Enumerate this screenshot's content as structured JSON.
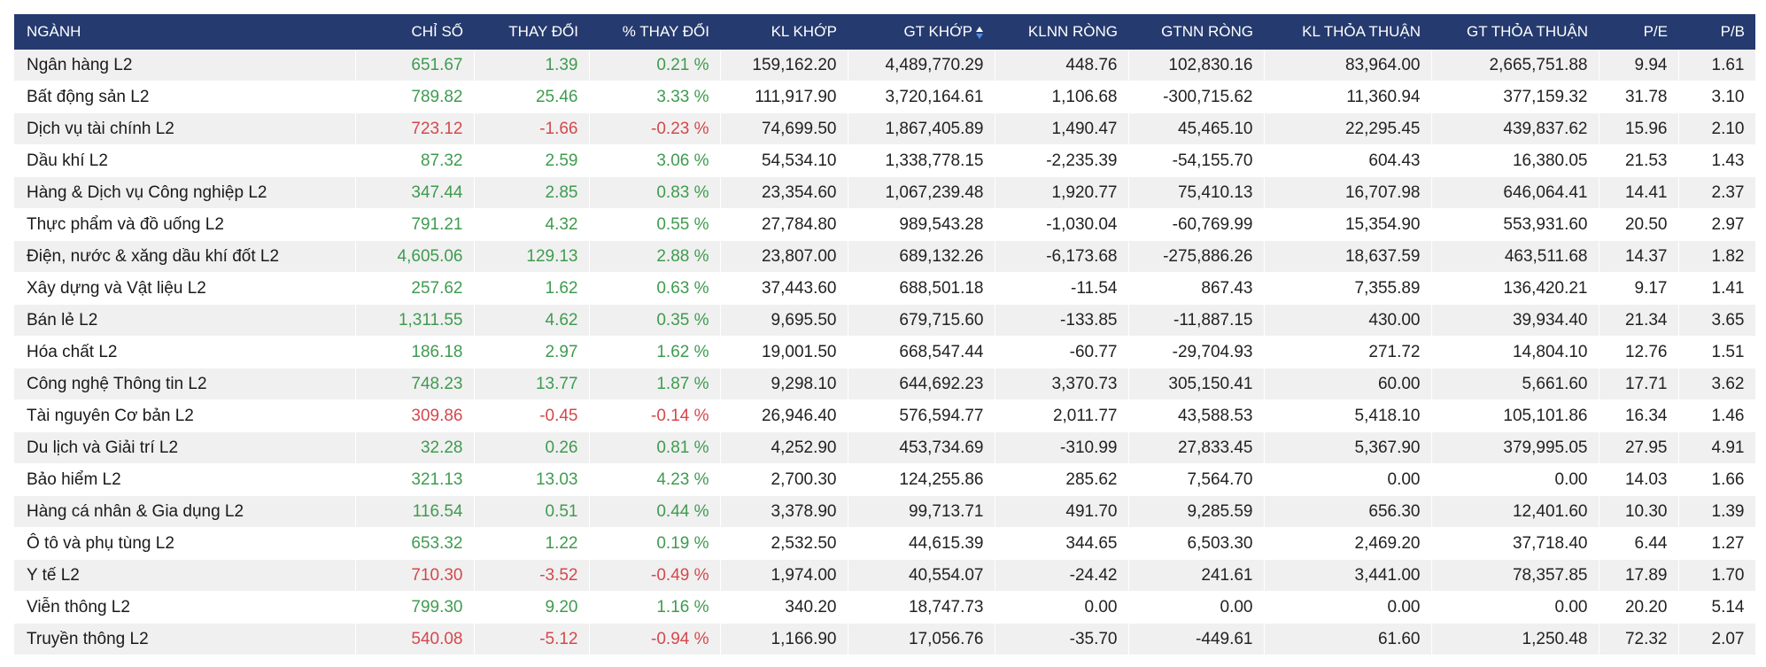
{
  "colors": {
    "header_bg": "#253a6e",
    "header_text": "#ffffff",
    "up": "#3f9b4f",
    "down": "#d4484c",
    "row_alt": "#f0f0f0",
    "sort_icon_active": "#4e8ee8"
  },
  "table": {
    "headers": {
      "name": "NGÀNH",
      "index": "CHỈ SỐ",
      "change": "THAY ĐỔI",
      "pct_change": "% THAY ĐỔI",
      "kl_khop": "KL KHỚP",
      "gt_khop": "GT KHỚP",
      "klnn_rong": "KLNN RÒNG",
      "gtnn_rong": "GTNN RÒNG",
      "kl_thoa_thuan": "KL THỎA THUẬN",
      "gt_thoa_thuan": "GT THỎA THUẬN",
      "pe": "P/E",
      "pb": "P/B"
    },
    "sort_icon": "sort-updown-icon",
    "rows": [
      {
        "name": "Ngân hàng L2",
        "trend": "up",
        "index": "651.67",
        "change": "1.39",
        "pct": "0.21 %",
        "kl_khop": "159,162.20",
        "gt_khop": "4,489,770.29",
        "klnn": "448.76",
        "gtnn": "102,830.16",
        "kl_tt": "83,964.00",
        "gt_tt": "2,665,751.88",
        "pe": "9.94",
        "pb": "1.61"
      },
      {
        "name": "Bất động sản L2",
        "trend": "up",
        "index": "789.82",
        "change": "25.46",
        "pct": "3.33 %",
        "kl_khop": "111,917.90",
        "gt_khop": "3,720,164.61",
        "klnn": "1,106.68",
        "gtnn": "-300,715.62",
        "kl_tt": "11,360.94",
        "gt_tt": "377,159.32",
        "pe": "31.78",
        "pb": "3.10"
      },
      {
        "name": "Dịch vụ tài chính L2",
        "trend": "down",
        "index": "723.12",
        "change": "-1.66",
        "pct": "-0.23 %",
        "kl_khop": "74,699.50",
        "gt_khop": "1,867,405.89",
        "klnn": "1,490.47",
        "gtnn": "45,465.10",
        "kl_tt": "22,295.45",
        "gt_tt": "439,837.62",
        "pe": "15.96",
        "pb": "2.10"
      },
      {
        "name": "Dầu khí L2",
        "trend": "up",
        "index": "87.32",
        "change": "2.59",
        "pct": "3.06 %",
        "kl_khop": "54,534.10",
        "gt_khop": "1,338,778.15",
        "klnn": "-2,235.39",
        "gtnn": "-54,155.70",
        "kl_tt": "604.43",
        "gt_tt": "16,380.05",
        "pe": "21.53",
        "pb": "1.43"
      },
      {
        "name": "Hàng & Dịch vụ Công nghiệp L2",
        "trend": "up",
        "index": "347.44",
        "change": "2.85",
        "pct": "0.83 %",
        "kl_khop": "23,354.60",
        "gt_khop": "1,067,239.48",
        "klnn": "1,920.77",
        "gtnn": "75,410.13",
        "kl_tt": "16,707.98",
        "gt_tt": "646,064.41",
        "pe": "14.41",
        "pb": "2.37"
      },
      {
        "name": "Thực phẩm và đồ uống L2",
        "trend": "up",
        "index": "791.21",
        "change": "4.32",
        "pct": "0.55 %",
        "kl_khop": "27,784.80",
        "gt_khop": "989,543.28",
        "klnn": "-1,030.04",
        "gtnn": "-60,769.99",
        "kl_tt": "15,354.90",
        "gt_tt": "553,931.60",
        "pe": "20.50",
        "pb": "2.97"
      },
      {
        "name": "Điện, nước & xăng dầu khí đốt L2",
        "trend": "up",
        "index": "4,605.06",
        "change": "129.13",
        "pct": "2.88 %",
        "kl_khop": "23,807.00",
        "gt_khop": "689,132.26",
        "klnn": "-6,173.68",
        "gtnn": "-275,886.26",
        "kl_tt": "18,637.59",
        "gt_tt": "463,511.68",
        "pe": "14.37",
        "pb": "1.82"
      },
      {
        "name": "Xây dựng và Vật liệu L2",
        "trend": "up",
        "index": "257.62",
        "change": "1.62",
        "pct": "0.63 %",
        "kl_khop": "37,443.60",
        "gt_khop": "688,501.18",
        "klnn": "-11.54",
        "gtnn": "867.43",
        "kl_tt": "7,355.89",
        "gt_tt": "136,420.21",
        "pe": "9.17",
        "pb": "1.41"
      },
      {
        "name": "Bán lẻ L2",
        "trend": "up",
        "index": "1,311.55",
        "change": "4.62",
        "pct": "0.35 %",
        "kl_khop": "9,695.50",
        "gt_khop": "679,715.60",
        "klnn": "-133.85",
        "gtnn": "-11,887.15",
        "kl_tt": "430.00",
        "gt_tt": "39,934.40",
        "pe": "21.34",
        "pb": "3.65"
      },
      {
        "name": "Hóa chất L2",
        "trend": "up",
        "index": "186.18",
        "change": "2.97",
        "pct": "1.62 %",
        "kl_khop": "19,001.50",
        "gt_khop": "668,547.44",
        "klnn": "-60.77",
        "gtnn": "-29,704.93",
        "kl_tt": "271.72",
        "gt_tt": "14,804.10",
        "pe": "12.76",
        "pb": "1.51"
      },
      {
        "name": "Công nghệ Thông tin L2",
        "trend": "up",
        "index": "748.23",
        "change": "13.77",
        "pct": "1.87 %",
        "kl_khop": "9,298.10",
        "gt_khop": "644,692.23",
        "klnn": "3,370.73",
        "gtnn": "305,150.41",
        "kl_tt": "60.00",
        "gt_tt": "5,661.60",
        "pe": "17.71",
        "pb": "3.62"
      },
      {
        "name": "Tài nguyên Cơ bản L2",
        "trend": "down",
        "index": "309.86",
        "change": "-0.45",
        "pct": "-0.14 %",
        "kl_khop": "26,946.40",
        "gt_khop": "576,594.77",
        "klnn": "2,011.77",
        "gtnn": "43,588.53",
        "kl_tt": "5,418.10",
        "gt_tt": "105,101.86",
        "pe": "16.34",
        "pb": "1.46"
      },
      {
        "name": "Du lịch và Giải trí L2",
        "trend": "up",
        "index": "32.28",
        "change": "0.26",
        "pct": "0.81 %",
        "kl_khop": "4,252.90",
        "gt_khop": "453,734.69",
        "klnn": "-310.99",
        "gtnn": "27,833.45",
        "kl_tt": "5,367.90",
        "gt_tt": "379,995.05",
        "pe": "27.95",
        "pb": "4.91"
      },
      {
        "name": "Bảo hiểm L2",
        "trend": "up",
        "index": "321.13",
        "change": "13.03",
        "pct": "4.23 %",
        "kl_khop": "2,700.30",
        "gt_khop": "124,255.86",
        "klnn": "285.62",
        "gtnn": "7,564.70",
        "kl_tt": "0.00",
        "gt_tt": "0.00",
        "pe": "14.03",
        "pb": "1.66"
      },
      {
        "name": "Hàng cá nhân & Gia dụng L2",
        "trend": "up",
        "index": "116.54",
        "change": "0.51",
        "pct": "0.44 %",
        "kl_khop": "3,378.90",
        "gt_khop": "99,713.71",
        "klnn": "491.70",
        "gtnn": "9,285.59",
        "kl_tt": "656.30",
        "gt_tt": "12,401.60",
        "pe": "10.30",
        "pb": "1.39"
      },
      {
        "name": "Ô tô và phụ tùng L2",
        "trend": "up",
        "index": "653.32",
        "change": "1.22",
        "pct": "0.19 %",
        "kl_khop": "2,532.50",
        "gt_khop": "44,615.39",
        "klnn": "344.65",
        "gtnn": "6,503.30",
        "kl_tt": "2,469.20",
        "gt_tt": "37,718.40",
        "pe": "6.44",
        "pb": "1.27"
      },
      {
        "name": "Y tế L2",
        "trend": "down",
        "index": "710.30",
        "change": "-3.52",
        "pct": "-0.49 %",
        "kl_khop": "1,974.00",
        "gt_khop": "40,554.07",
        "klnn": "-24.42",
        "gtnn": "241.61",
        "kl_tt": "3,441.00",
        "gt_tt": "78,357.85",
        "pe": "17.89",
        "pb": "1.70"
      },
      {
        "name": "Viễn thông L2",
        "trend": "up",
        "index": "799.30",
        "change": "9.20",
        "pct": "1.16 %",
        "kl_khop": "340.20",
        "gt_khop": "18,747.73",
        "klnn": "0.00",
        "gtnn": "0.00",
        "kl_tt": "0.00",
        "gt_tt": "0.00",
        "pe": "20.20",
        "pb": "5.14"
      },
      {
        "name": "Truyền thông L2",
        "trend": "down",
        "index": "540.08",
        "change": "-5.12",
        "pct": "-0.94 %",
        "kl_khop": "1,166.90",
        "gt_khop": "17,056.76",
        "klnn": "-35.70",
        "gtnn": "-449.61",
        "kl_tt": "61.60",
        "gt_tt": "1,250.48",
        "pe": "72.32",
        "pb": "2.07"
      }
    ]
  }
}
